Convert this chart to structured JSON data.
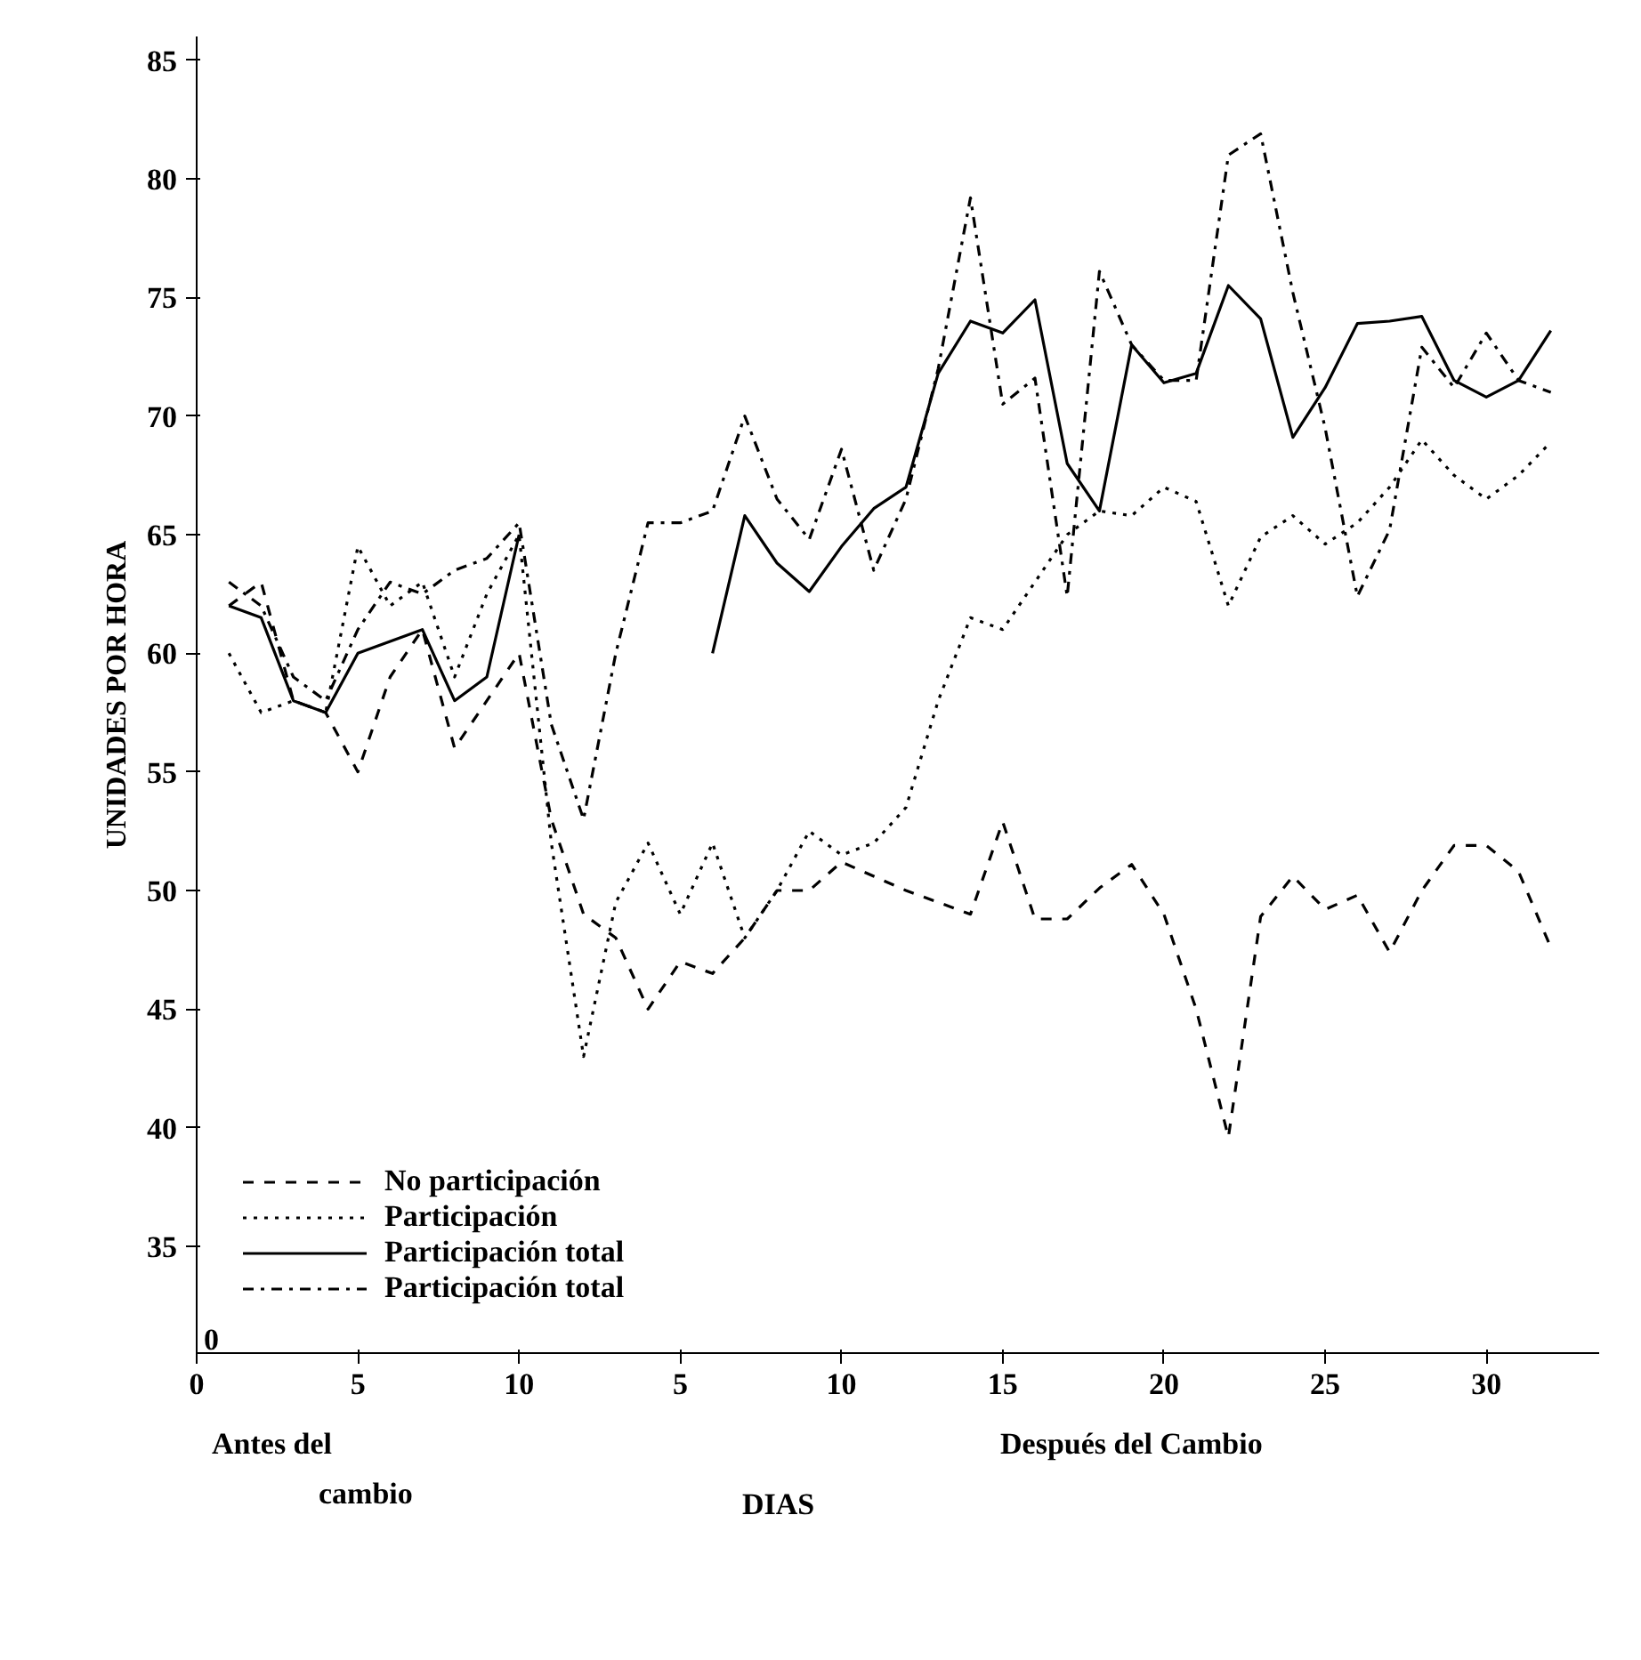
{
  "chart_data": {
    "type": "line",
    "xlabel": "DIAS",
    "ylabel": "UNIDADES POR HORA",
    "annotations": [
      "Antes del\ncambio",
      "Después del Cambio",
      "0"
    ],
    "categories": [
      "0",
      null,
      null,
      null,
      null,
      "5",
      null,
      null,
      null,
      null,
      "10",
      null,
      null,
      null,
      null,
      "5",
      null,
      null,
      null,
      null,
      "10",
      null,
      null,
      null,
      null,
      "15",
      null,
      null,
      null,
      null,
      "20",
      null,
      null,
      null,
      null,
      "25",
      null,
      null,
      null,
      null,
      "30",
      null,
      null
    ],
    "ylim": [
      30.5,
      86
    ],
    "yticks": [
      35,
      40,
      45,
      50,
      55,
      60,
      65,
      70,
      75,
      80,
      85
    ],
    "grid": false,
    "legend": "bottom left",
    "series": [
      {
        "name": "No participación",
        "color": "#000000",
        "line_style": "dashed",
        "values": [
          null,
          62,
          63,
          58,
          57.5,
          55,
          59,
          61,
          56,
          58,
          60,
          53,
          49,
          48,
          45,
          47,
          46.5,
          48,
          50,
          50,
          51.2,
          50.6,
          50,
          49.5,
          49,
          52.9,
          48.8,
          48.8,
          50.1,
          51.1,
          49,
          45,
          39.6,
          48.9,
          50.6,
          49.2,
          49.8,
          47.4,
          50,
          51.9,
          51.9,
          50.8,
          47.6
        ]
      },
      {
        "name": "Participación",
        "color": "#000000",
        "line_style": "dotted",
        "values": [
          null,
          60,
          57.5,
          58,
          57.5,
          64.5,
          62,
          63,
          59,
          62.5,
          65,
          52,
          43,
          49.5,
          52,
          49,
          52,
          48,
          50,
          52.5,
          51.5,
          52,
          53.5,
          58,
          61.5,
          61,
          63,
          65,
          66,
          65.8,
          67,
          66.4,
          62,
          64.9,
          65.8,
          64.6,
          65.5,
          67,
          69,
          67.5,
          66.5,
          67.5,
          68.9
        ]
      },
      {
        "name": "Participación total",
        "color": "#000000",
        "line_style": "solid",
        "values": [
          null,
          62,
          61.5,
          58,
          57.5,
          60,
          60.5,
          61,
          58,
          59,
          65,
          null,
          null,
          null,
          null,
          null,
          60,
          65.8,
          63.8,
          62.6,
          64.5,
          66.1,
          67,
          71.8,
          74,
          73.5,
          74.9,
          68,
          66,
          73,
          71.4,
          71.8,
          75.5,
          74.1,
          69.1,
          71.2,
          73.9,
          74,
          74.2,
          71.5,
          70.8,
          71.5,
          73.6
        ]
      },
      {
        "name": "Participación total",
        "color": "#000000",
        "line_style": "dashdot",
        "values": [
          null,
          63,
          62,
          59,
          58,
          61,
          63,
          62.5,
          63.5,
          64,
          65.5,
          57,
          53,
          60,
          65.5,
          65.5,
          66,
          70,
          66.5,
          64.8,
          68.6,
          63.5,
          66.5,
          72,
          79.2,
          70.5,
          71.6,
          62.4,
          76.1,
          73,
          71.5,
          71.5,
          81,
          81.9,
          75.2,
          69.5,
          62.4,
          65.2,
          72.9,
          71.2,
          73.5,
          71.5,
          71
        ]
      }
    ]
  }
}
